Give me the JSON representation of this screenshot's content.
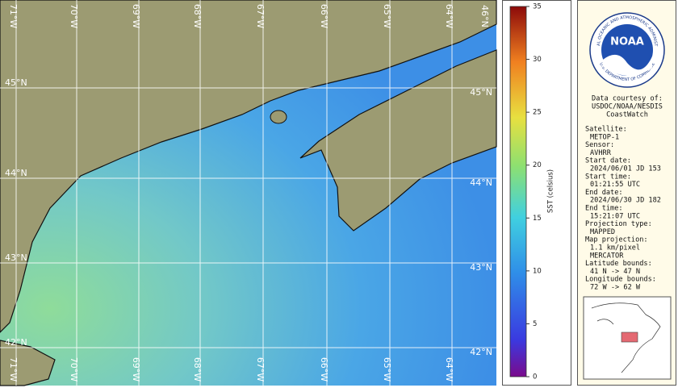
{
  "map": {
    "top_labels": [
      "71°W",
      "70°W",
      "69°W",
      "68°W",
      "67°W",
      "66°W",
      "65°W",
      "64°W",
      "46°N"
    ],
    "bottom_labels": [
      "71°W",
      "70°W",
      "69°W",
      "68°W",
      "67°W",
      "66°W",
      "65°W",
      "64°W"
    ],
    "left_labels": [
      "45°N",
      "44°N",
      "43°N",
      "42°N"
    ],
    "right_labels": [
      "45°N",
      "44°N",
      "43°N",
      "42°N"
    ]
  },
  "colorbar": {
    "label": "SST (celsius)",
    "range": [
      0,
      35
    ],
    "ticks": [
      0,
      5,
      10,
      15,
      20,
      25,
      30,
      35
    ]
  },
  "info": {
    "logo_text": "NOAA",
    "logo_ring_top": "NATIONAL OCEANIC AND ATMOSPHERIC ADMINISTRATION",
    "logo_ring_bottom": "U.S. DEPARTMENT OF COMMERCE",
    "courtesy": [
      "Data courtesy of:",
      "USDOC/NOAA/NESDIS",
      "CoastWatch"
    ],
    "fields": [
      {
        "label": "Satellite:",
        "values": [
          "METOP-1"
        ]
      },
      {
        "label": "Sensor:",
        "values": [
          "AVHRR"
        ]
      },
      {
        "label": "Start date:",
        "values": [
          "2024/06/01 JD 153"
        ]
      },
      {
        "label": "Start time:",
        "values": [
          "01:21:55 UTC"
        ]
      },
      {
        "label": "End date:",
        "values": [
          "2024/06/30 JD 182"
        ]
      },
      {
        "label": "End time:",
        "values": [
          "15:21:07 UTC"
        ]
      },
      {
        "label": "Projection type:",
        "values": [
          "MAPPED"
        ]
      },
      {
        "label": "Map projection:",
        "values": [
          "1.1 km/pixel",
          "MERCATOR"
        ]
      },
      {
        "label": "Latitude bounds:",
        "values": [
          "41 N -> 47 N"
        ]
      },
      {
        "label": "Longitude bounds:",
        "values": [
          "72 W -> 62 W"
        ]
      }
    ]
  }
}
